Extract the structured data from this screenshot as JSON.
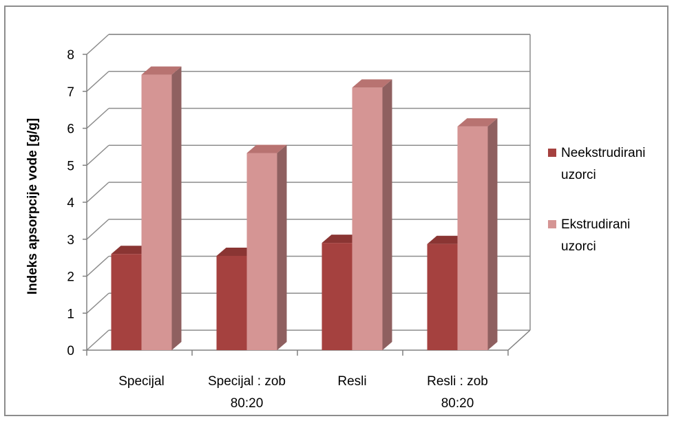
{
  "chart_data": {
    "type": "bar",
    "ylabel": "Indeks apsorpcije vode [g/g]",
    "ylim": [
      0,
      8
    ],
    "yticks": [
      "0",
      "1",
      "2",
      "3",
      "4",
      "5",
      "6",
      "7",
      "8"
    ],
    "categories": [
      [
        "Specijal"
      ],
      [
        "Specijal : zob",
        "80:20"
      ],
      [
        "Resli"
      ],
      [
        "Resli : zob",
        "80:20"
      ]
    ],
    "series": [
      {
        "name": [
          "Neekstrudirani",
          "uzorci"
        ],
        "values": [
          2.6,
          2.55,
          2.9,
          2.87
        ],
        "color": "#a5413f",
        "side": "#7d2e2c",
        "top": "#8a3533"
      },
      {
        "name": [
          "Ekstrudirani",
          "uzorci"
        ],
        "values": [
          7.45,
          5.33,
          7.1,
          6.05
        ],
        "color": "#d59594",
        "side": "#8f6060",
        "top": "#b87371"
      }
    ],
    "grid": true,
    "legend": "right",
    "style": "3d-column"
  }
}
